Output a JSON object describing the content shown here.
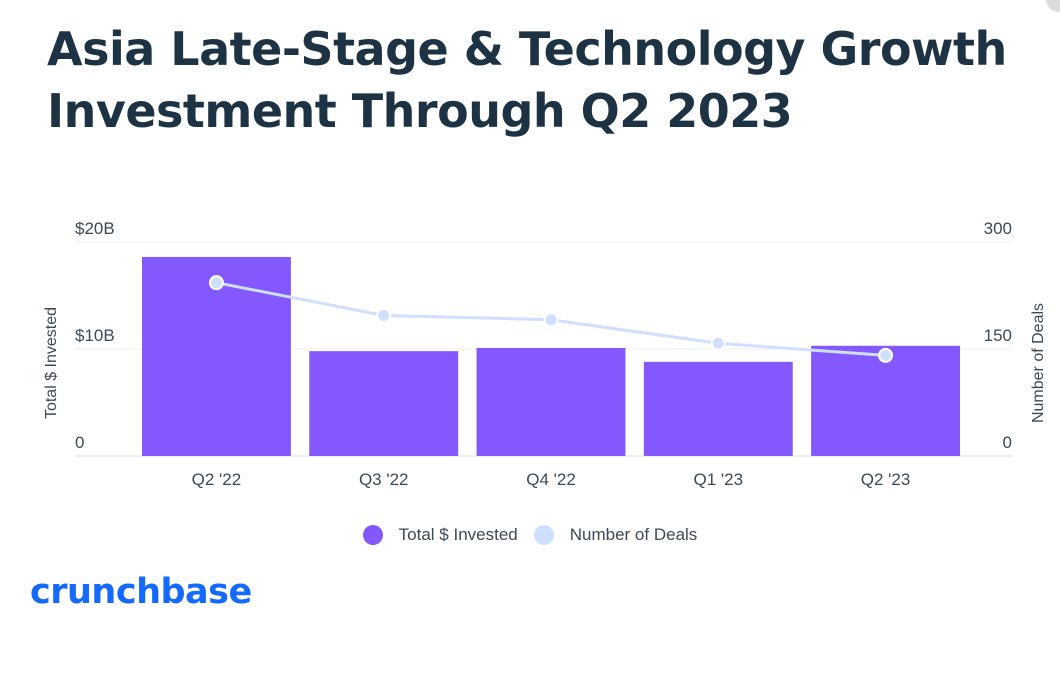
{
  "title_line1": "Asia Late-Stage & Technology Growth",
  "title_line2": "Investment Through Q2 2023",
  "brand": "crunchbase",
  "colors": {
    "bar": "#8358ff",
    "line": "#cfdfff",
    "title": "#1d3344",
    "brand": "#146aff"
  },
  "chart_data": {
    "type": "bar",
    "categories": [
      "Q2 '22",
      "Q3 '22",
      "Q4 '22",
      "Q1 '23",
      "Q2 '23"
    ],
    "series": [
      {
        "name": "Total $ Invested",
        "type": "bar",
        "axis": "left",
        "unit": "USD billions",
        "values": [
          18.6,
          9.8,
          10.1,
          8.8,
          10.3
        ]
      },
      {
        "name": "Number of Deals",
        "type": "line",
        "axis": "right",
        "values": [
          243,
          197,
          191,
          158,
          141
        ]
      }
    ],
    "ylabel": "Total $ Invested",
    "ylim": [
      0,
      20
    ],
    "yticks": [
      "0",
      "$10B",
      "$20B"
    ],
    "y2label": "Number of Deals",
    "y2lim": [
      0,
      300
    ],
    "y2ticks": [
      "0",
      "150",
      "300"
    ],
    "legend": [
      "Total $ Invested",
      "Number of Deals"
    ],
    "legend_position": "bottom-center"
  }
}
